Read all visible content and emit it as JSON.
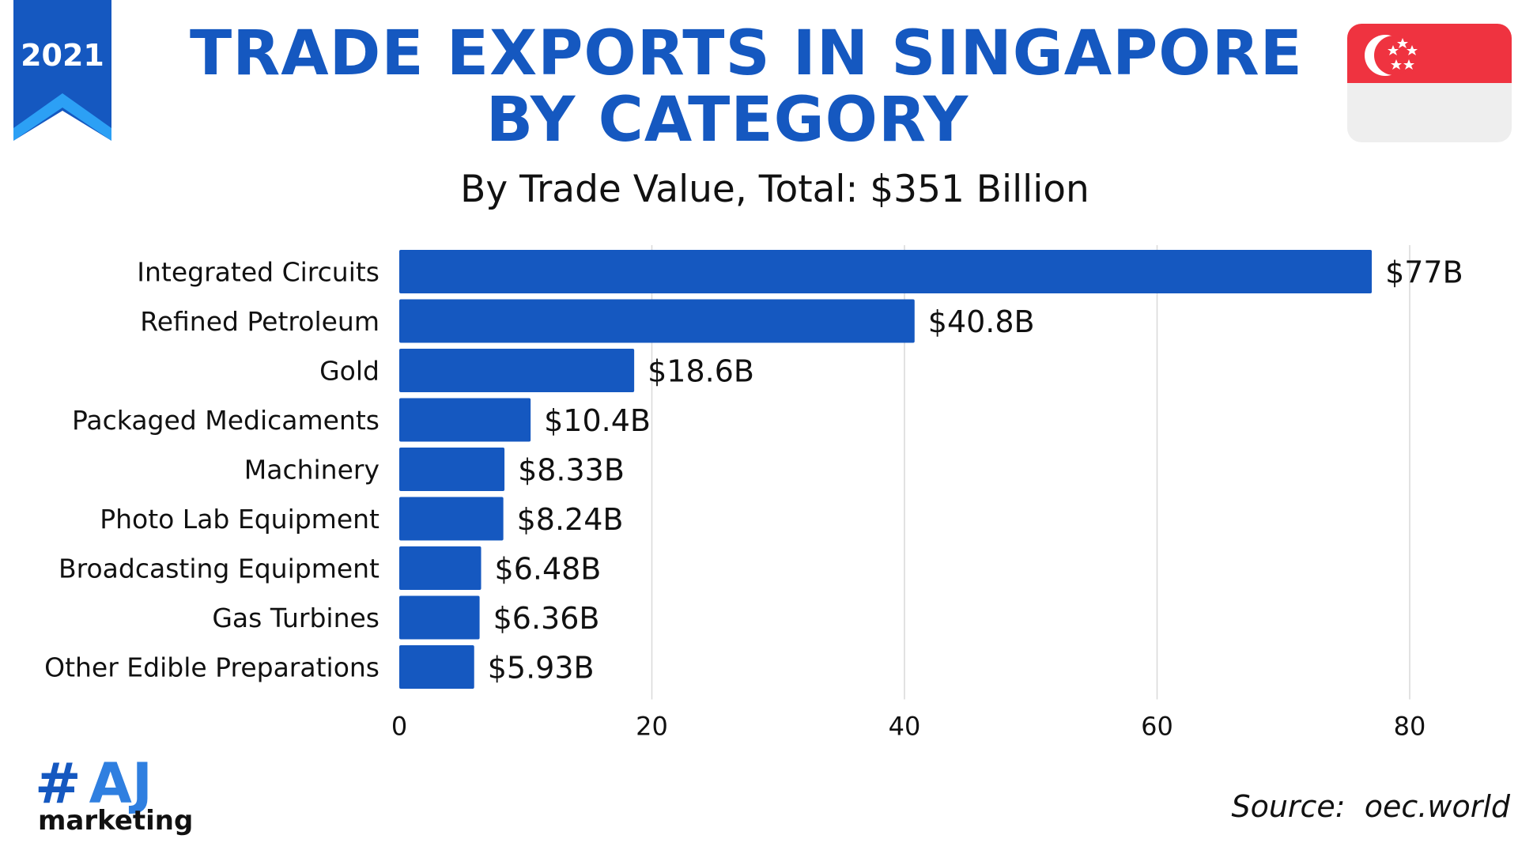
{
  "year": "2021",
  "title_lines": [
    "TRADE EXPORTS IN SINGAPORE",
    "BY CATEGORY"
  ],
  "subtitle": "By Trade Value, Total: $351 Billion",
  "colors": {
    "brand_blue": "#1558c0",
    "ribbon_accent": "#2ca0f5",
    "flag_red": "#ef3340",
    "flag_white": "#eeeeee",
    "grid": "#d9d9d9"
  },
  "chart_data": {
    "type": "bar",
    "orientation": "horizontal",
    "categories": [
      "Integrated Circuits",
      "Refined Petroleum",
      "Gold",
      "Packaged Medicaments",
      "Machinery",
      "Photo Lab Equipment",
      "Broadcasting Equipment",
      "Gas Turbines",
      "Other Edible Preparations"
    ],
    "values": [
      77,
      40.8,
      18.6,
      10.4,
      8.33,
      8.24,
      6.48,
      6.36,
      5.93
    ],
    "data_labels": [
      "$77B",
      "$40.8B",
      "$18.6B",
      "$10.4B",
      "$8.33B",
      "$8.24B",
      "$6.48B",
      "$6.36B",
      "$5.93B"
    ],
    "title": "",
    "xlabel": "",
    "ylabel": "",
    "xlim": [
      0,
      80
    ],
    "xticks": [
      0,
      20,
      40,
      60,
      80
    ],
    "grid": true
  },
  "logo": {
    "hash": "#",
    "letters": "AJ",
    "word": "marketing"
  },
  "source_text": "Source:  oec.world"
}
